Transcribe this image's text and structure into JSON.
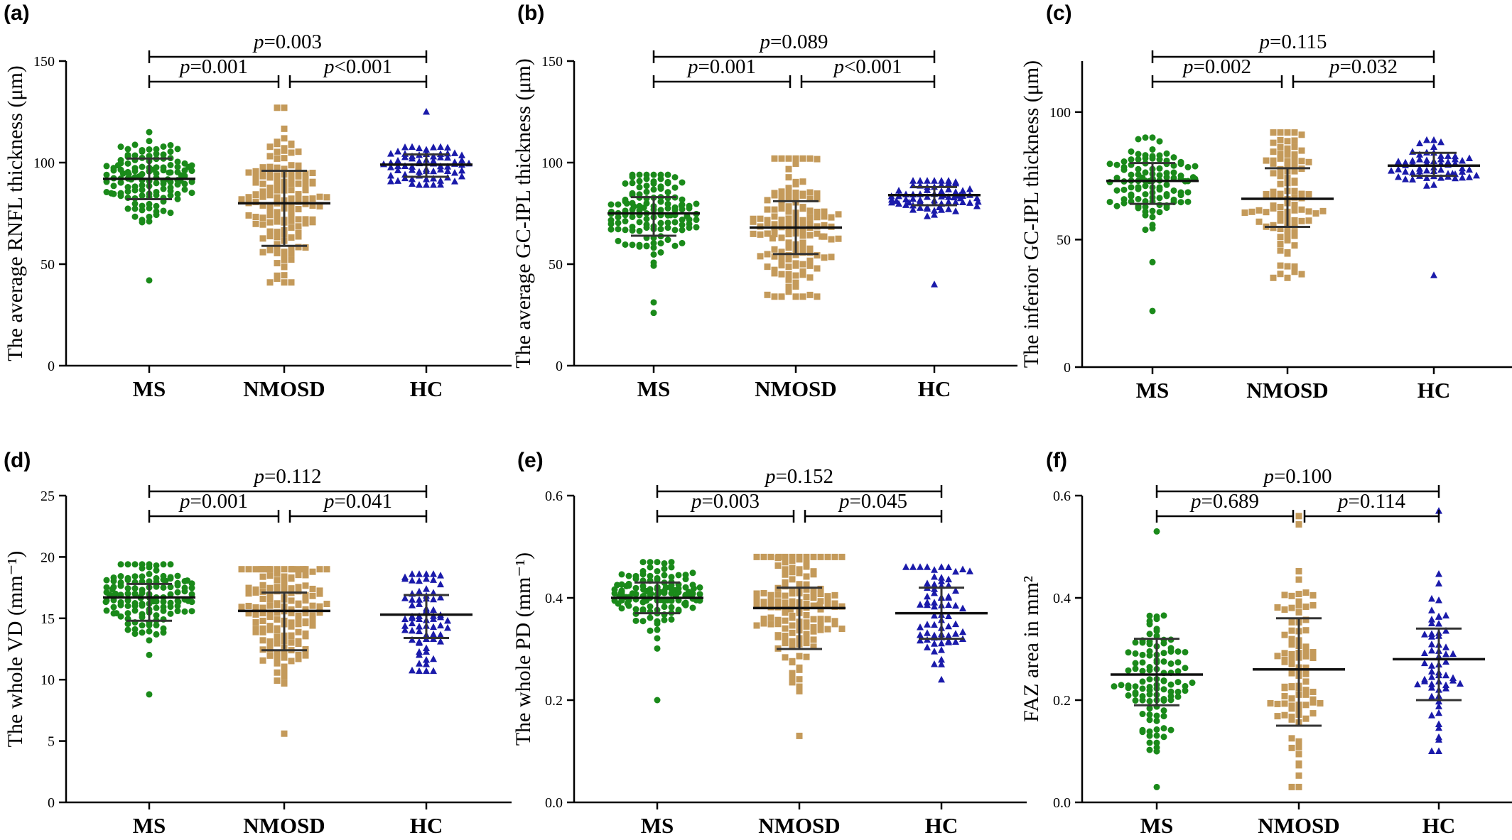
{
  "chart_data": [
    {
      "type": "scatter",
      "panel_label": "(a)",
      "ylabel": "The average RNFL thickness (μm)",
      "ylim": [
        0,
        150
      ],
      "yticks": [
        "0",
        "50",
        "100",
        "150"
      ],
      "categories": [
        "MS",
        "NMOSD",
        "HC"
      ],
      "series": [
        {
          "mean": 92,
          "sd_low": 82,
          "sd_high": 102,
          "range": [
            42,
            115
          ],
          "n": 130,
          "color": "#1a8a1a",
          "marker": "circle"
        },
        {
          "mean": 80,
          "sd_low": 59,
          "sd_high": 96,
          "range": [
            41,
            127
          ],
          "n": 140,
          "color": "#c49a5a",
          "marker": "square"
        },
        {
          "mean": 99,
          "sd_low": 93,
          "sd_high": 104,
          "range": [
            89,
            125
          ],
          "n": 70,
          "color": "#1a1aaa",
          "marker": "triangle"
        }
      ],
      "comparisons": [
        {
          "from": "MS",
          "to": "HC",
          "label": "p=0.003",
          "level": 2
        },
        {
          "from": "MS",
          "to": "NMOSD",
          "label": "p=0.001",
          "level": 1
        },
        {
          "from": "NMOSD",
          "to": "HC",
          "label": "p<0.001",
          "level": 1
        }
      ]
    },
    {
      "type": "scatter",
      "panel_label": "(b)",
      "ylabel": "The average GC-IPL thickness (μm)",
      "ylim": [
        0,
        150
      ],
      "yticks": [
        "0",
        "50",
        "100",
        "150"
      ],
      "categories": [
        "MS",
        "NMOSD",
        "HC"
      ],
      "series": [
        {
          "mean": 75,
          "sd_low": 64,
          "sd_high": 83,
          "range": [
            26,
            94
          ],
          "n": 130,
          "color": "#1a8a1a",
          "marker": "circle"
        },
        {
          "mean": 68,
          "sd_low": 55,
          "sd_high": 81,
          "range": [
            34,
            102
          ],
          "n": 140,
          "color": "#c49a5a",
          "marker": "square"
        },
        {
          "mean": 84,
          "sd_low": 79,
          "sd_high": 88,
          "range": [
            40,
            91
          ],
          "n": 70,
          "color": "#1a1aaa",
          "marker": "triangle"
        }
      ],
      "comparisons": [
        {
          "from": "MS",
          "to": "HC",
          "label": "p=0.089",
          "level": 2
        },
        {
          "from": "MS",
          "to": "NMOSD",
          "label": "p=0.001",
          "level": 1
        },
        {
          "from": "NMOSD",
          "to": "HC",
          "label": "p<0.001",
          "level": 1
        }
      ]
    },
    {
      "type": "scatter",
      "panel_label": "(c)",
      "ylabel": "The inferior GC-IPL thickness (μm)",
      "ylim": [
        0,
        120
      ],
      "yticks": [
        "0",
        "50",
        "100"
      ],
      "categories": [
        "MS",
        "NMOSD",
        "HC"
      ],
      "series": [
        {
          "mean": 73,
          "sd_low": 64,
          "sd_high": 80,
          "range": [
            22,
            90
          ],
          "n": 110,
          "color": "#1a8a1a",
          "marker": "circle"
        },
        {
          "mean": 66,
          "sd_low": 55,
          "sd_high": 78,
          "range": [
            35,
            92
          ],
          "n": 100,
          "color": "#c49a5a",
          "marker": "square"
        },
        {
          "mean": 79,
          "sd_low": 75,
          "sd_high": 84,
          "range": [
            36,
            89
          ],
          "n": 60,
          "color": "#1a1aaa",
          "marker": "triangle"
        }
      ],
      "comparisons": [
        {
          "from": "MS",
          "to": "HC",
          "label": "p=0.115",
          "level": 2
        },
        {
          "from": "MS",
          "to": "NMOSD",
          "label": "p=0.002",
          "level": 1
        },
        {
          "from": "NMOSD",
          "to": "HC",
          "label": "p=0.032",
          "level": 1
        }
      ]
    },
    {
      "type": "scatter",
      "panel_label": "(d)",
      "ylabel": "The whole VD (mm⁻¹)",
      "ylim": [
        0,
        25
      ],
      "yticks": [
        "0",
        "5",
        "10",
        "15",
        "20",
        "25"
      ],
      "categories": [
        "MS",
        "NMOSD",
        "HC"
      ],
      "series": [
        {
          "mean": 16.7,
          "sd_low": 14.8,
          "sd_high": 17.8,
          "range": [
            8.8,
            19.4
          ],
          "n": 130,
          "color": "#1a8a1a",
          "marker": "circle"
        },
        {
          "mean": 15.6,
          "sd_low": 12.4,
          "sd_high": 17.1,
          "range": [
            5.6,
            19.0
          ],
          "n": 140,
          "color": "#c49a5a",
          "marker": "square"
        },
        {
          "mean": 15.3,
          "sd_low": 13.4,
          "sd_high": 16.9,
          "range": [
            10.7,
            18.6
          ],
          "n": 70,
          "color": "#1a1aaa",
          "marker": "triangle"
        }
      ],
      "comparisons": [
        {
          "from": "MS",
          "to": "HC",
          "label": "p=0.112",
          "level": 2
        },
        {
          "from": "MS",
          "to": "NMOSD",
          "label": "p=0.001",
          "level": 1
        },
        {
          "from": "NMOSD",
          "to": "HC",
          "label": "p=0.041",
          "level": 1
        }
      ]
    },
    {
      "type": "scatter",
      "panel_label": "(e)",
      "ylabel": "The whole PD (mm⁻¹)",
      "ylim": [
        0,
        0.6
      ],
      "yticks": [
        "0.0",
        "0.2",
        "0.4",
        "0.6"
      ],
      "categories": [
        "MS",
        "NMOSD",
        "HC"
      ],
      "series": [
        {
          "mean": 0.4,
          "sd_low": 0.37,
          "sd_high": 0.43,
          "range": [
            0.2,
            0.47
          ],
          "n": 130,
          "color": "#1a8a1a",
          "marker": "circle"
        },
        {
          "mean": 0.38,
          "sd_low": 0.3,
          "sd_high": 0.42,
          "range": [
            0.13,
            0.48
          ],
          "n": 140,
          "color": "#c49a5a",
          "marker": "square"
        },
        {
          "mean": 0.37,
          "sd_low": 0.32,
          "sd_high": 0.42,
          "range": [
            0.24,
            0.46
          ],
          "n": 70,
          "color": "#1a1aaa",
          "marker": "triangle"
        }
      ],
      "comparisons": [
        {
          "from": "MS",
          "to": "HC",
          "label": "p=0.152",
          "level": 2
        },
        {
          "from": "MS",
          "to": "NMOSD",
          "label": "p=0.003",
          "level": 1
        },
        {
          "from": "NMOSD",
          "to": "HC",
          "label": "p=0.045",
          "level": 1
        }
      ]
    },
    {
      "type": "scatter",
      "panel_label": "(f)",
      "ylabel": "FAZ area in mm²",
      "ylim": [
        0,
        0.6
      ],
      "yticks": [
        "0.0",
        "0.2",
        "0.4",
        "0.6"
      ],
      "categories": [
        "MS",
        "NMOSD",
        "HC"
      ],
      "series": [
        {
          "mean": 0.25,
          "sd_low": 0.19,
          "sd_high": 0.32,
          "range": [
            0.03,
            0.53
          ],
          "n": 110,
          "color": "#1a8a1a",
          "marker": "circle"
        },
        {
          "mean": 0.26,
          "sd_low": 0.15,
          "sd_high": 0.36,
          "range": [
            0.03,
            0.56
          ],
          "n": 90,
          "color": "#c49a5a",
          "marker": "square"
        },
        {
          "mean": 0.28,
          "sd_low": 0.2,
          "sd_high": 0.34,
          "range": [
            0.1,
            0.57
          ],
          "n": 60,
          "color": "#1a1aaa",
          "marker": "triangle"
        }
      ],
      "comparisons": [
        {
          "from": "MS",
          "to": "HC",
          "label": "p=0.100",
          "level": 2
        },
        {
          "from": "MS",
          "to": "NMOSD",
          "label": "p=0.689",
          "level": 1
        },
        {
          "from": "NMOSD",
          "to": "HC",
          "label": "p=0.114",
          "level": 1
        }
      ]
    }
  ]
}
